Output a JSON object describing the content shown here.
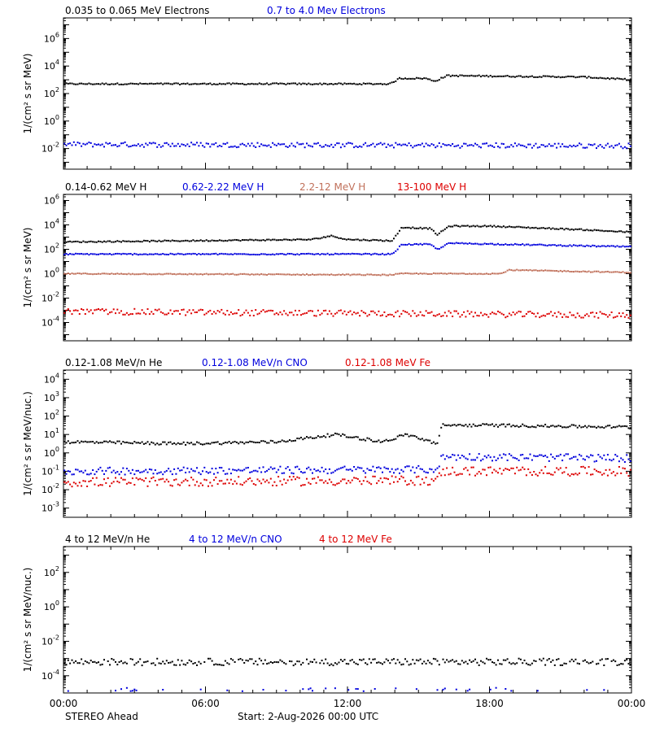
{
  "colors": {
    "black": "#000000",
    "blue": "#0000dd",
    "tan": "#c0705a",
    "red": "#dd0000"
  },
  "footer": {
    "spacecraft": "STEREO Ahead",
    "start": "Start:  2-Aug-2026 00:00 UTC"
  },
  "chart_data": [
    {
      "type": "scatter",
      "ylabel": "1/(cm² s sr MeV)",
      "ylim_log10": [
        -3.5,
        7.5
      ],
      "y_ticks_log10": [
        -2,
        0,
        2,
        4,
        6
      ],
      "x_range_hours": [
        0,
        24
      ],
      "x_ticks": [
        "00:00",
        "06:00",
        "12:00",
        "18:00",
        "00:00"
      ],
      "series": [
        {
          "name": "0.035 to 0.065 MeV Electrons",
          "color": "black",
          "profile": [
            [
              0,
              2.7
            ],
            [
              13.8,
              2.7
            ],
            [
              14.2,
              3.1
            ],
            [
              15.3,
              3.1
            ],
            [
              15.7,
              2.9
            ],
            [
              16.2,
              3.3
            ],
            [
              22,
              3.2
            ],
            [
              24,
              3.0
            ]
          ],
          "scatter": 0.05,
          "gap": 0
        },
        {
          "name": "0.7 to 4.0 Mev Electrons",
          "color": "blue",
          "profile": [
            [
              0,
              -1.7
            ],
            [
              24,
              -1.8
            ]
          ],
          "scatter": 0.18,
          "gap": 0
        }
      ]
    },
    {
      "type": "scatter",
      "ylabel": "1/(cm² s sr MeV)",
      "ylim_log10": [
        -5.5,
        6.5
      ],
      "y_ticks_log10": [
        -4,
        -2,
        0,
        2,
        4,
        6
      ],
      "x_range_hours": [
        0,
        24
      ],
      "x_ticks": [
        "00:00",
        "06:00",
        "12:00",
        "18:00",
        "00:00"
      ],
      "series": [
        {
          "name": "0.14-0.62 MeV H",
          "color": "black",
          "profile": [
            [
              0,
              2.6
            ],
            [
              10.5,
              2.8
            ],
            [
              11.3,
              3.1
            ],
            [
              12,
              2.8
            ],
            [
              13.9,
              2.7
            ],
            [
              14.3,
              3.8
            ],
            [
              15.5,
              3.7
            ],
            [
              15.8,
              3.2
            ],
            [
              16.3,
              3.9
            ],
            [
              18,
              3.9
            ],
            [
              22,
              3.6
            ],
            [
              24,
              3.4
            ]
          ],
          "scatter": 0.05,
          "gap": 0
        },
        {
          "name": "0.62-2.22 MeV H",
          "color": "blue",
          "profile": [
            [
              0,
              1.6
            ],
            [
              13.9,
              1.6
            ],
            [
              14.3,
              2.4
            ],
            [
              15.5,
              2.4
            ],
            [
              15.8,
              2.0
            ],
            [
              16.3,
              2.5
            ],
            [
              24,
              2.2
            ]
          ],
          "scatter": 0.05,
          "gap": 0
        },
        {
          "name": "2.2-12 MeV H",
          "color": "tan",
          "profile": [
            [
              0,
              0.0
            ],
            [
              13.8,
              -0.1
            ],
            [
              14.3,
              0.0
            ],
            [
              18.5,
              0.0
            ],
            [
              18.8,
              0.3
            ],
            [
              24,
              0.1
            ]
          ],
          "scatter": 0.04,
          "gap": 0
        },
        {
          "name": "13-100 MeV H",
          "color": "red",
          "profile": [
            [
              0,
              -3.1
            ],
            [
              24,
              -3.4
            ]
          ],
          "scatter": 0.25,
          "gap": 0
        }
      ]
    },
    {
      "type": "scatter",
      "ylabel": "1/(cm² s sr MeV/nuc.)",
      "ylim_log10": [
        -3.5,
        4.5
      ],
      "y_ticks_log10": [
        -3,
        -2,
        -1,
        0,
        1,
        2,
        3,
        4
      ],
      "x_range_hours": [
        0,
        24
      ],
      "x_ticks": [
        "00:00",
        "06:00",
        "12:00",
        "18:00",
        "00:00"
      ],
      "series": [
        {
          "name": "0.12-1.08 MeV/n He",
          "color": "black",
          "profile": [
            [
              0,
              0.6
            ],
            [
              5,
              0.5
            ],
            [
              9,
              0.6
            ],
            [
              11.5,
              1.0
            ],
            [
              13.5,
              0.6
            ],
            [
              14.5,
              1.0
            ],
            [
              15.8,
              0.5
            ],
            [
              16.0,
              1.5
            ],
            [
              18,
              1.5
            ],
            [
              24,
              1.4
            ]
          ],
          "scatter": 0.08,
          "gap": 0
        },
        {
          "name": "0.12-1.08 MeV/n CNO",
          "color": "blue",
          "profile": [
            [
              0,
              -1.0
            ],
            [
              15.8,
              -0.9
            ],
            [
              16.0,
              -0.2
            ],
            [
              24,
              -0.3
            ]
          ],
          "scatter": 0.2,
          "gap": 0
        },
        {
          "name": "0.12-1.08 MeV Fe",
          "color": "red",
          "profile": [
            [
              0,
              -1.6
            ],
            [
              15.8,
              -1.5
            ],
            [
              16.0,
              -1.0
            ],
            [
              24,
              -1.0
            ]
          ],
          "scatter": 0.25,
          "gap": 0
        }
      ]
    },
    {
      "type": "scatter",
      "ylabel": "1/(cm² s sr MeV/nuc.)",
      "ylim_log10": [
        -5,
        3.5
      ],
      "y_ticks_log10": [
        -4,
        -2,
        0,
        2
      ],
      "x_range_hours": [
        0,
        24
      ],
      "x_ticks": [
        "00:00",
        "06:00",
        "12:00",
        "18:00",
        "00:00"
      ],
      "series": [
        {
          "name": "4 to 12 MeV/n He",
          "color": "black",
          "profile": [
            [
              0,
              -3.2
            ],
            [
              24,
              -3.2
            ]
          ],
          "scatter": 0.2,
          "gap": 0.05
        },
        {
          "name": "4 to 12 MeV/n CNO",
          "color": "blue",
          "profile": [
            [
              0,
              -4.8
            ],
            [
              24,
              -4.8
            ]
          ],
          "scatter": 0.1,
          "gap": 0.9
        },
        {
          "name": "4 to 12 MeV Fe",
          "color": "red",
          "profile": [],
          "scatter": 0,
          "gap": 1
        }
      ]
    }
  ]
}
